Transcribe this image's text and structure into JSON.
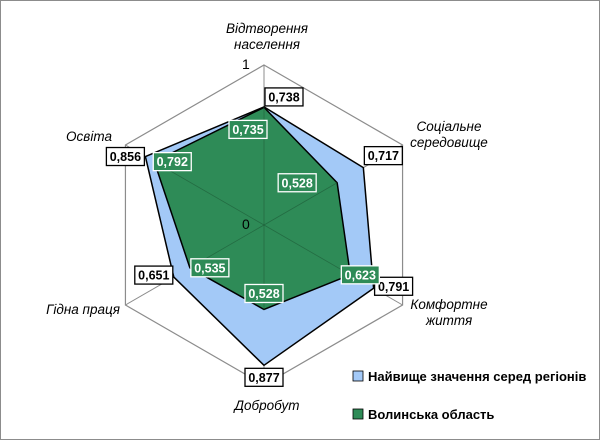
{
  "chart_data": {
    "type": "radar",
    "axes": [
      "Відтворення населення",
      "Соціальне середовище",
      "Комфортне життя",
      "Добробут",
      "Гідна праця",
      "Освіта"
    ],
    "axis_label_lines": [
      [
        "Відтворення",
        "населення"
      ],
      [
        "Соціальне",
        "середовище"
      ],
      [
        "Комфортне",
        "життя"
      ],
      [
        "Добробут"
      ],
      [
        "Гідна праця"
      ],
      [
        "Освіта"
      ]
    ],
    "scale": {
      "min": 0,
      "max": 1,
      "min_label": "0",
      "max_label": "1"
    },
    "series": [
      {
        "name": "Найвище значення серед регіонів",
        "values": [
          0.738,
          0.717,
          0.791,
          0.877,
          0.651,
          0.856
        ],
        "labels": [
          "0,738",
          "0,717",
          "0,791",
          "0,877",
          "0,651",
          "0,856"
        ],
        "color": "#a3c9f7"
      },
      {
        "name": "Волинська область",
        "values": [
          0.735,
          0.528,
          0.623,
          0.528,
          0.535,
          0.792
        ],
        "labels": [
          "0,735",
          "0,528",
          "0,623",
          "0,528",
          "0,535",
          "0,792"
        ],
        "color": "#2e8b57"
      }
    ],
    "grid": true,
    "legend": "bottom-right"
  }
}
